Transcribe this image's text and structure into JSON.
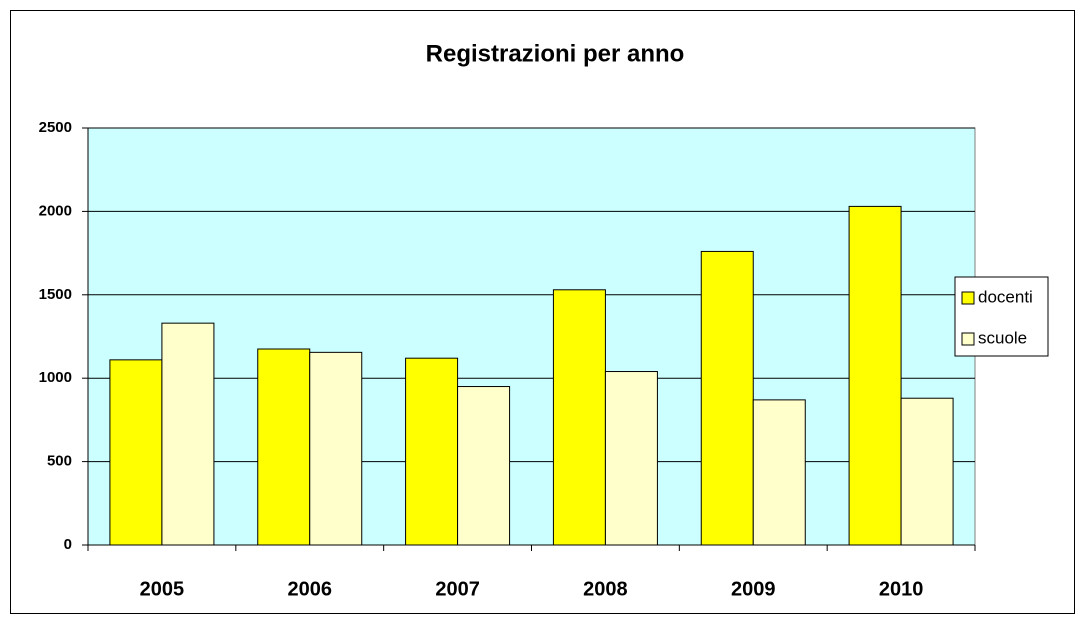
{
  "chart_data": {
    "type": "bar",
    "title": "Registrazioni per anno",
    "categories": [
      "2005",
      "2006",
      "2007",
      "2008",
      "2009",
      "2010"
    ],
    "series": [
      {
        "name": "docenti",
        "color": "#ffff00",
        "values": [
          1110,
          1175,
          1120,
          1530,
          1760,
          2030
        ]
      },
      {
        "name": "scuole",
        "color": "#ffffcc",
        "values": [
          1330,
          1155,
          950,
          1040,
          870,
          880
        ]
      }
    ],
    "ylim": [
      0,
      2500
    ],
    "yticks": [
      0,
      500,
      1000,
      1500,
      2000,
      2500
    ],
    "grid": true,
    "legend": "right"
  }
}
